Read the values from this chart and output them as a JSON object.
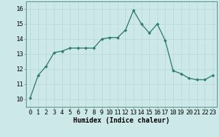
{
  "x": [
    0,
    1,
    2,
    3,
    4,
    5,
    6,
    7,
    8,
    9,
    10,
    11,
    12,
    13,
    14,
    15,
    16,
    17,
    18,
    19,
    20,
    21,
    22,
    23
  ],
  "y": [
    10.1,
    11.6,
    12.2,
    13.1,
    13.2,
    13.4,
    13.4,
    13.4,
    13.4,
    14.0,
    14.1,
    14.1,
    14.6,
    15.9,
    15.0,
    14.4,
    15.0,
    13.9,
    11.9,
    11.7,
    11.4,
    11.3,
    11.3,
    11.6
  ],
  "line_color": "#2e7d6e",
  "marker": "D",
  "marker_size": 2.0,
  "bg_color": "#cde8e8",
  "grid_color": "#b8d4d4",
  "xlabel": "Humidex (Indice chaleur)",
  "xlabel_fontsize": 7,
  "tick_fontsize": 6.5,
  "ylim": [
    9.5,
    16.5
  ],
  "xlim": [
    -0.5,
    23.5
  ],
  "yticks": [
    10,
    11,
    12,
    13,
    14,
    15,
    16
  ],
  "xticks": [
    0,
    1,
    2,
    3,
    4,
    5,
    6,
    7,
    8,
    9,
    10,
    11,
    12,
    13,
    14,
    15,
    16,
    17,
    18,
    19,
    20,
    21,
    22,
    23
  ]
}
